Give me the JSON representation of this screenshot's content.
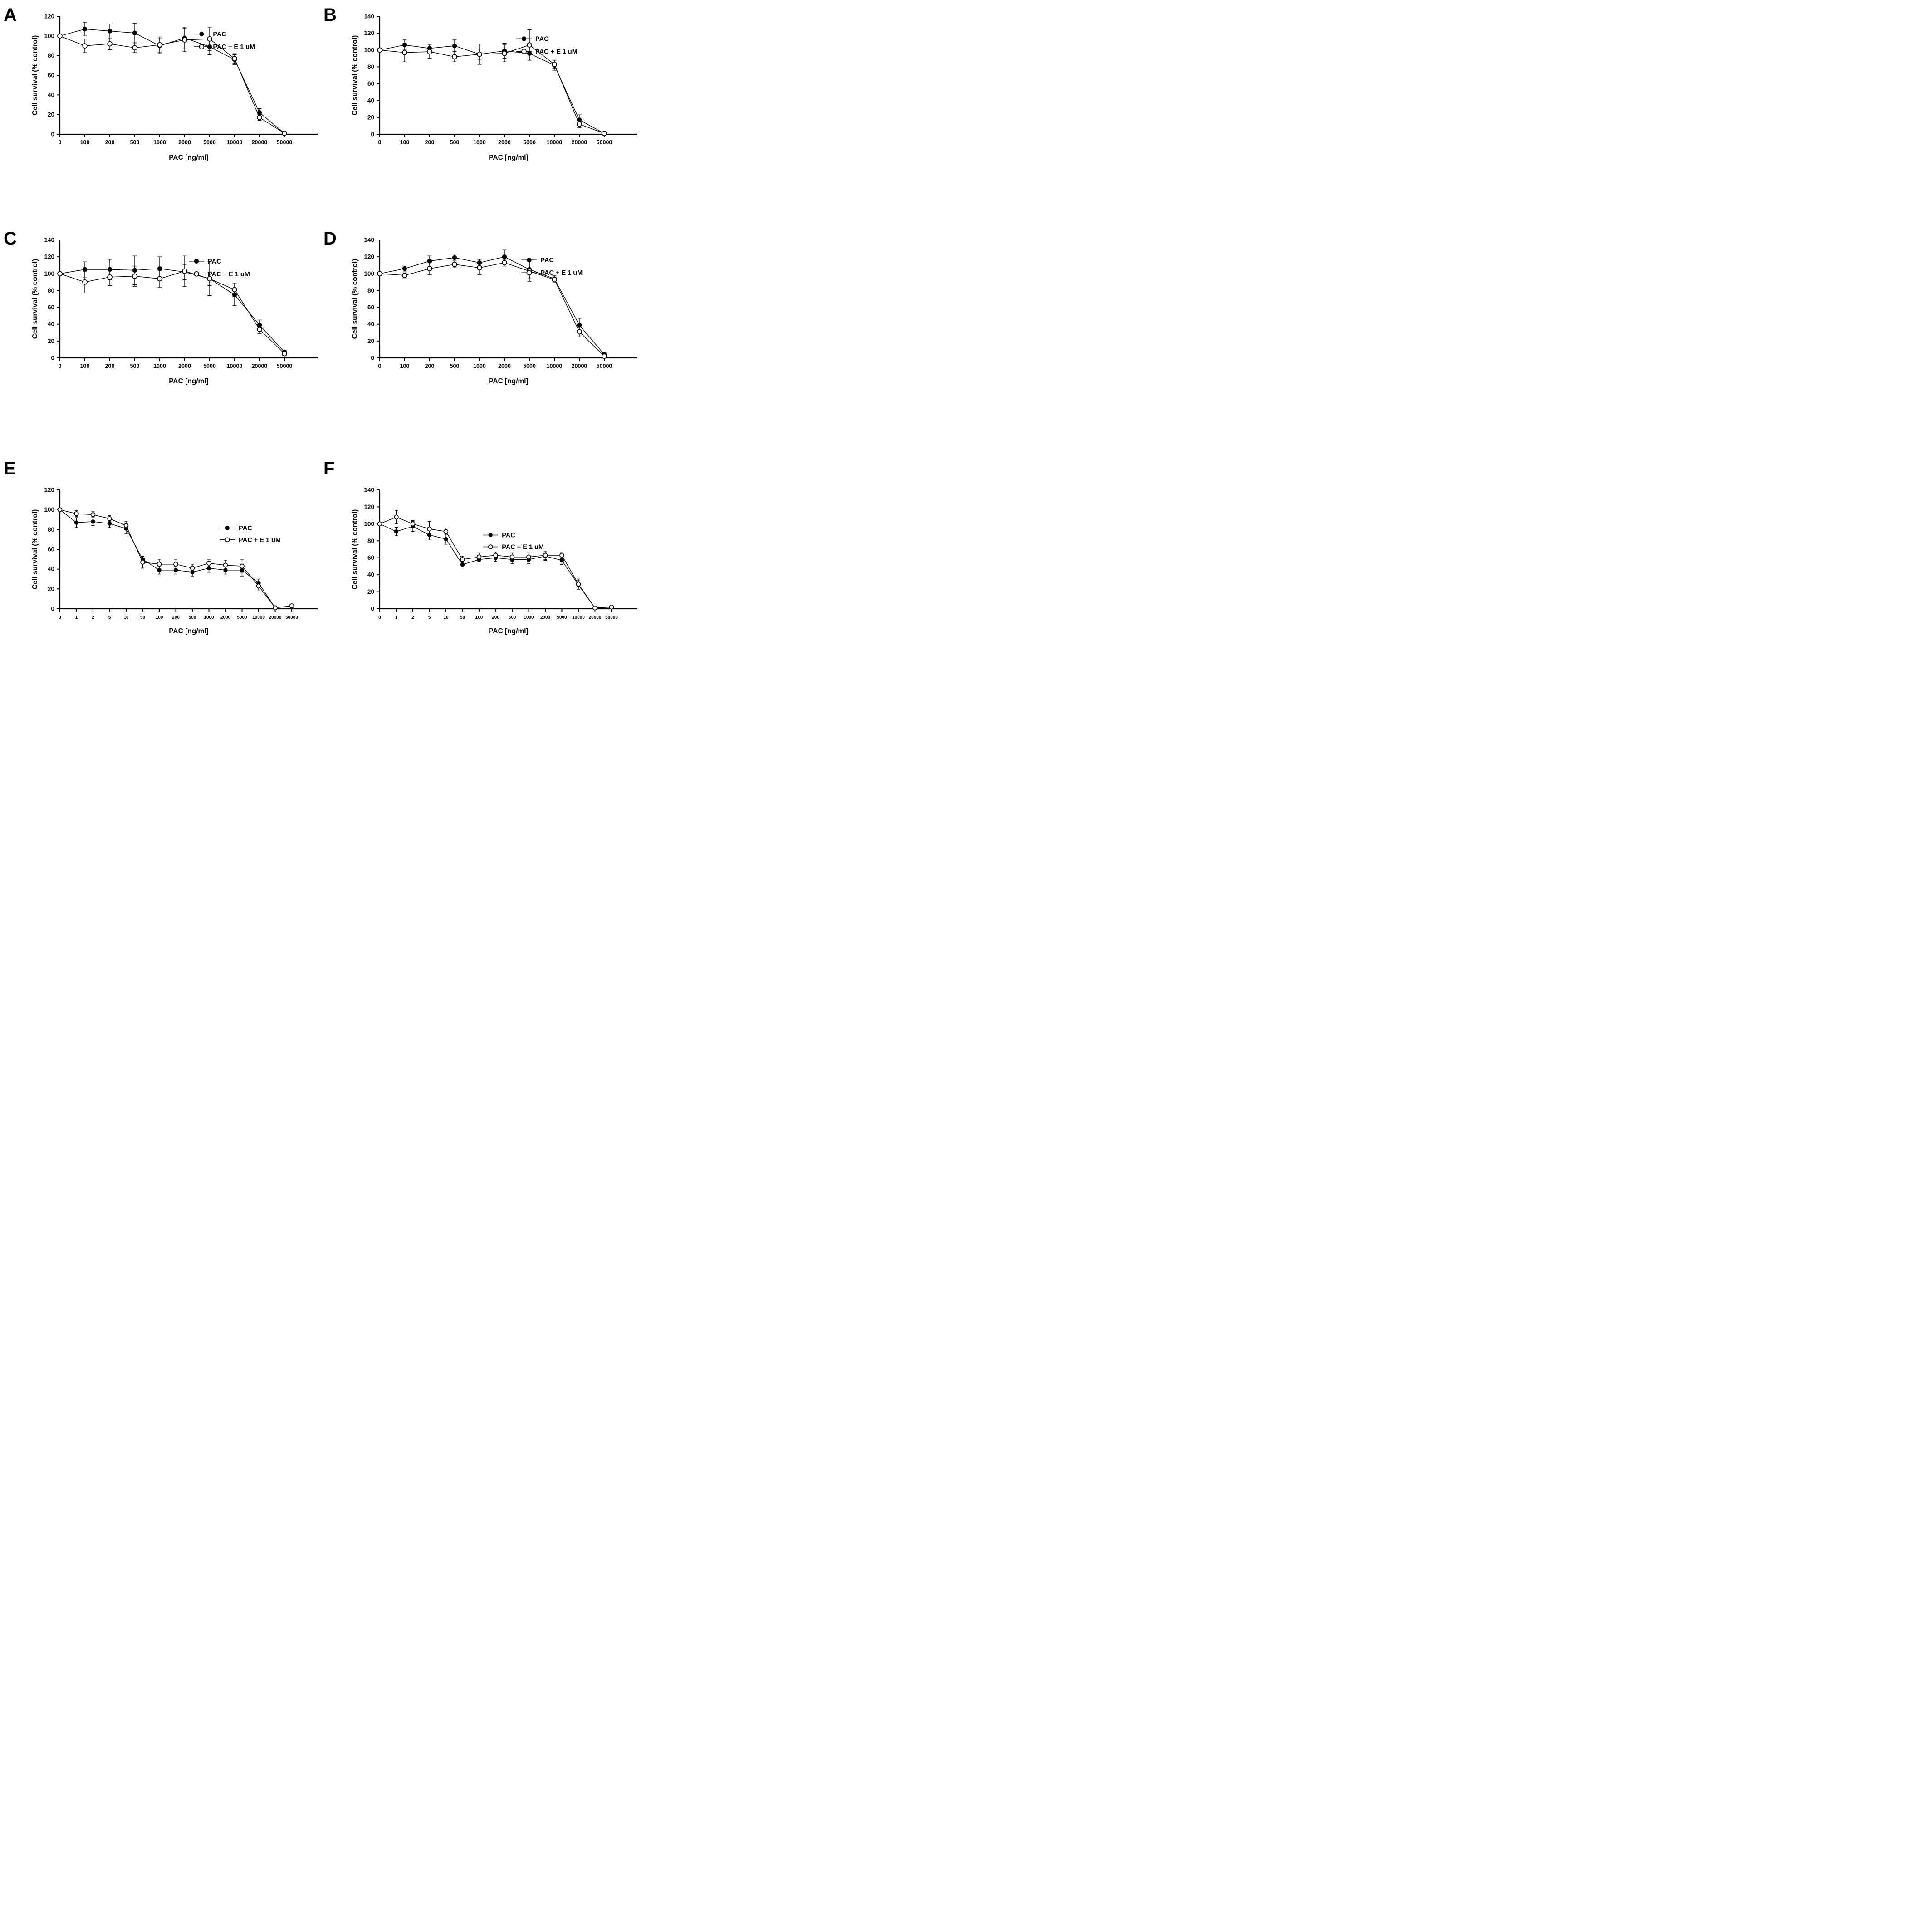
{
  "figure": {
    "x_axis_label": "PAC [ng/ml]",
    "y_axis_label": "Cell survival (% control)",
    "legend_labels": [
      "PAC",
      "PAC + E 1 uM"
    ],
    "line_color": "#000000",
    "text_color": "#000000",
    "background_color": "#ffffff"
  },
  "chart_data": [
    {
      "panel": "A",
      "type": "line",
      "xlabel": "PAC [ng/ml]",
      "ylabel": "Cell survival (% control)",
      "ylim": [
        0,
        120
      ],
      "ytick_step": 20,
      "grid": false,
      "legend_position": {
        "fx": 0.52,
        "fy": 0.15
      },
      "categories": [
        "0",
        "100",
        "200",
        "500",
        "1000",
        "2000",
        "5000",
        "10000",
        "20000",
        "50000"
      ],
      "series": [
        {
          "name": "PAC",
          "marker": "filled-circle",
          "values": [
            100,
            107,
            105,
            103,
            90,
            98,
            89,
            76,
            22,
            1
          ],
          "errors": [
            0,
            7,
            7,
            10,
            8,
            11,
            8,
            5,
            4,
            1
          ]
        },
        {
          "name": "PAC + E 1 uM",
          "marker": "open-circle",
          "values": [
            100,
            90,
            92,
            88,
            91,
            96,
            97,
            77,
            17,
            1
          ],
          "errors": [
            0,
            7,
            6,
            5,
            8,
            12,
            12,
            5,
            3,
            1
          ]
        }
      ]
    },
    {
      "panel": "B",
      "type": "line",
      "xlabel": "PAC [ng/ml]",
      "ylabel": "Cell survival (% control)",
      "ylim": [
        0,
        140
      ],
      "ytick_step": 20,
      "grid": false,
      "legend_position": {
        "fx": 0.53,
        "fy": 0.19
      },
      "categories": [
        "0",
        "100",
        "200",
        "500",
        "1000",
        "2000",
        "5000",
        "10000",
        "20000",
        "50000"
      ],
      "series": [
        {
          "name": "PAC",
          "marker": "filled-circle",
          "values": [
            100,
            106,
            102,
            105,
            95,
            99,
            96,
            82,
            17,
            1
          ],
          "errors": [
            0,
            6,
            5,
            7,
            6,
            9,
            8,
            6,
            6,
            1
          ]
        },
        {
          "name": "PAC + E 1 uM",
          "marker": "open-circle",
          "values": [
            100,
            97,
            98,
            92,
            95,
            96,
            106,
            83,
            12,
            1
          ],
          "errors": [
            0,
            11,
            8,
            6,
            12,
            10,
            18,
            5,
            4,
            1
          ]
        }
      ]
    },
    {
      "panel": "C",
      "type": "line",
      "xlabel": "PAC [ng/ml]",
      "ylabel": "Cell survival (% control)",
      "ylim": [
        0,
        140
      ],
      "ytick_step": 20,
      "grid": false,
      "legend_position": {
        "fx": 0.5,
        "fy": 0.18
      },
      "categories": [
        "0",
        "100",
        "200",
        "500",
        "1000",
        "2000",
        "5000",
        "10000",
        "20000",
        "50000"
      ],
      "series": [
        {
          "name": "PAC",
          "marker": "filled-circle",
          "values": [
            100,
            105,
            105,
            104,
            106,
            102,
            94,
            75,
            39,
            7
          ],
          "errors": [
            0,
            9,
            12,
            17,
            14,
            9,
            20,
            13,
            6,
            2
          ]
        },
        {
          "name": "PAC + E 1 uM",
          "marker": "open-circle",
          "values": [
            100,
            90,
            96,
            97,
            94,
            103,
            94,
            81,
            34,
            5
          ],
          "errors": [
            0,
            13,
            10,
            12,
            10,
            18,
            8,
            8,
            5,
            2
          ]
        }
      ]
    },
    {
      "panel": "D",
      "type": "line",
      "xlabel": "PAC [ng/ml]",
      "ylabel": "Cell survival (% control)",
      "ylim": [
        0,
        140
      ],
      "ytick_step": 20,
      "grid": false,
      "legend_position": {
        "fx": 0.55,
        "fy": 0.17
      },
      "categories": [
        "0",
        "100",
        "200",
        "500",
        "1000",
        "2000",
        "5000",
        "10000",
        "20000",
        "50000"
      ],
      "series": [
        {
          "name": "PAC",
          "marker": "filled-circle",
          "values": [
            100,
            106,
            115,
            119,
            113,
            120,
            105,
            94,
            39,
            4
          ],
          "errors": [
            0,
            3,
            6,
            3,
            4,
            8,
            10,
            4,
            8,
            2
          ]
        },
        {
          "name": "PAC + E 1 uM",
          "marker": "open-circle",
          "values": [
            100,
            98,
            106,
            111,
            107,
            113,
            103,
            93,
            31,
            2
          ],
          "errors": [
            0,
            3,
            7,
            4,
            8,
            4,
            12,
            3,
            6,
            1
          ]
        }
      ]
    },
    {
      "panel": "E",
      "type": "line",
      "xlabel": "PAC [ng/ml]",
      "ylabel": "Cell survival (% control)",
      "ylim": [
        0,
        120
      ],
      "ytick_step": 20,
      "grid": false,
      "legend_position": {
        "fx": 0.62,
        "fy": 0.32
      },
      "categories": [
        "0",
        "1",
        "2",
        "5",
        "10",
        "50",
        "100",
        "200",
        "500",
        "1000",
        "2000",
        "5000",
        "10000",
        "20000",
        "50000"
      ],
      "series": [
        {
          "name": "PAC",
          "marker": "filled-circle",
          "values": [
            100,
            87,
            88,
            86,
            81,
            50,
            39,
            39,
            37,
            41,
            39,
            39,
            26,
            1,
            3
          ],
          "errors": [
            0,
            5,
            4,
            4,
            5,
            3,
            4,
            4,
            4,
            5,
            4,
            6,
            4,
            1,
            1
          ]
        },
        {
          "name": "PAC + E 1 uM",
          "marker": "open-circle",
          "values": [
            100,
            96,
            95,
            91,
            84,
            47,
            45,
            45,
            41,
            46,
            44,
            43,
            23,
            1,
            3
          ],
          "errors": [
            0,
            3,
            3,
            3,
            4,
            6,
            5,
            5,
            4,
            4,
            5,
            7,
            4,
            1,
            1
          ]
        }
      ]
    },
    {
      "panel": "F",
      "type": "line",
      "xlabel": "PAC [ng/ml]",
      "ylabel": "Cell survival (% control)",
      "ylim": [
        0,
        140
      ],
      "ytick_step": 20,
      "grid": false,
      "legend_position": {
        "fx": 0.4,
        "fy": 0.38
      },
      "categories": [
        "0",
        "1",
        "2",
        "5",
        "10",
        "50",
        "100",
        "200",
        "500",
        "1000",
        "2000",
        "5000",
        "10000",
        "20000",
        "50000"
      ],
      "series": [
        {
          "name": "PAC",
          "marker": "filled-circle",
          "values": [
            100,
            91,
            97,
            87,
            82,
            52,
            58,
            60,
            58,
            58,
            62,
            57,
            28,
            1,
            2
          ],
          "errors": [
            0,
            5,
            6,
            6,
            6,
            3,
            3,
            4,
            5,
            5,
            5,
            5,
            5,
            1,
            1
          ]
        },
        {
          "name": "PAC + E 1 uM",
          "marker": "open-circle",
          "values": [
            100,
            108,
            100,
            94,
            91,
            58,
            61,
            63,
            61,
            61,
            63,
            63,
            29,
            1,
            2
          ],
          "errors": [
            0,
            8,
            4,
            9,
            4,
            4,
            5,
            4,
            5,
            5,
            5,
            4,
            6,
            1,
            1
          ]
        }
      ]
    }
  ]
}
